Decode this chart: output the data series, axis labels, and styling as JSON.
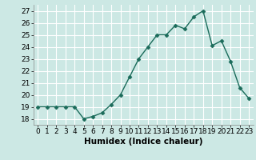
{
  "x": [
    0,
    1,
    2,
    3,
    4,
    5,
    6,
    7,
    8,
    9,
    10,
    11,
    12,
    13,
    14,
    15,
    16,
    17,
    18,
    19,
    20,
    21,
    22,
    23
  ],
  "y": [
    19.0,
    19.0,
    19.0,
    19.0,
    19.0,
    18.0,
    18.2,
    18.5,
    19.2,
    20.0,
    21.5,
    23.0,
    24.0,
    25.0,
    25.0,
    25.8,
    25.5,
    26.5,
    27.0,
    24.1,
    24.5,
    22.8,
    20.6,
    19.7
  ],
  "line_color": "#1a6b5a",
  "marker": "D",
  "marker_size": 2.5,
  "xlabel": "Humidex (Indice chaleur)",
  "ylim": [
    17.5,
    27.5
  ],
  "xlim": [
    -0.5,
    23.5
  ],
  "yticks": [
    18,
    19,
    20,
    21,
    22,
    23,
    24,
    25,
    26,
    27
  ],
  "xticks": [
    0,
    1,
    2,
    3,
    4,
    5,
    6,
    7,
    8,
    9,
    10,
    11,
    12,
    13,
    14,
    15,
    16,
    17,
    18,
    19,
    20,
    21,
    22,
    23
  ],
  "background_color": "#cce8e4",
  "grid_color": "#ffffff",
  "grid_minor_color": "#e0f0ee",
  "xlabel_fontsize": 7.5,
  "tick_fontsize": 6.5,
  "line_width": 1.0
}
